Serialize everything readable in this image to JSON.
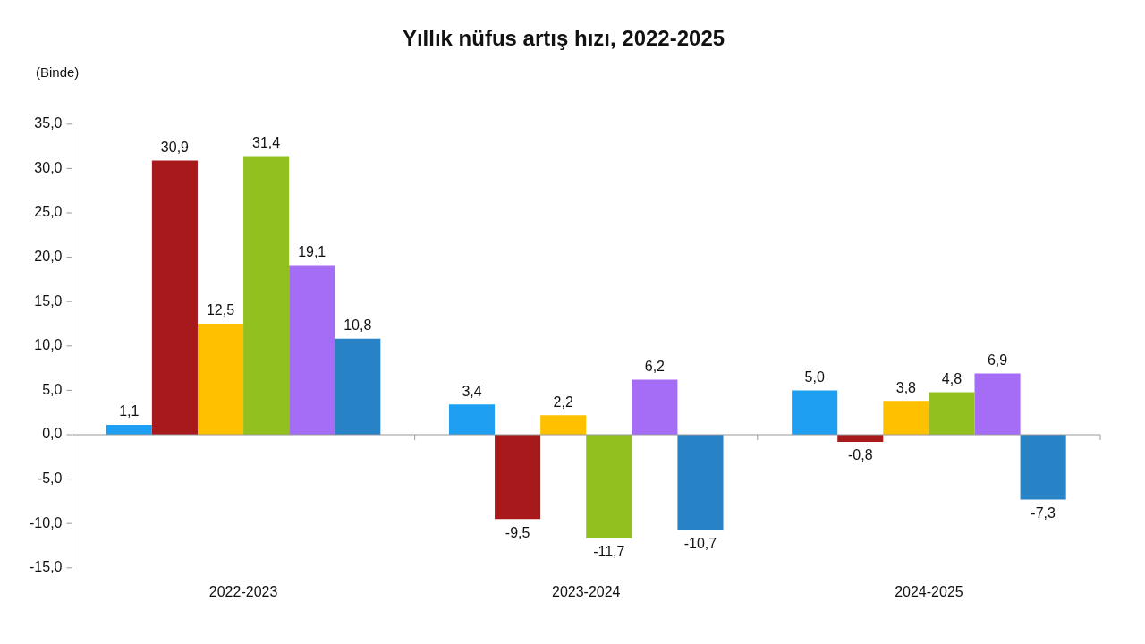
{
  "chart_data": {
    "type": "bar",
    "title": "Yıllık nüfus artış hızı, 2022-2025",
    "ylabel": "(Binde)",
    "categories": [
      "2022-2023",
      "2023-2024",
      "2024-2025"
    ],
    "series": [
      {
        "color": "#1e9ff2",
        "values": [
          1.1,
          3.4,
          5.0
        ],
        "value_labels": [
          "1,1",
          "3,4",
          "5,0"
        ]
      },
      {
        "color": "#a8191b",
        "values": [
          30.9,
          -9.5,
          -0.8
        ],
        "value_labels": [
          "30,9",
          "-9,5",
          "-0,8"
        ]
      },
      {
        "color": "#ffc000",
        "values": [
          12.5,
          2.2,
          3.8
        ],
        "value_labels": [
          "12,5",
          "2,2",
          "3,8"
        ]
      },
      {
        "color": "#92c01f",
        "values": [
          31.4,
          -11.7,
          4.8
        ],
        "value_labels": [
          "31,4",
          "-11,7",
          "4,8"
        ]
      },
      {
        "color": "#a56cf5",
        "values": [
          19.1,
          6.2,
          6.9
        ],
        "value_labels": [
          "19,1",
          "6,2",
          "6,9"
        ]
      },
      {
        "color": "#2882c6",
        "values": [
          10.8,
          -10.7,
          -7.3
        ],
        "value_labels": [
          "10,8",
          "-10,7",
          "-7,3"
        ]
      }
    ],
    "ylim": [
      -15,
      35
    ],
    "yticks": [
      {
        "value": -15,
        "label": "-15,0"
      },
      {
        "value": -10,
        "label": "-10,0"
      },
      {
        "value": -5,
        "label": "-5,0"
      },
      {
        "value": 0,
        "label": "0,0"
      },
      {
        "value": 5,
        "label": "5,0"
      },
      {
        "value": 10,
        "label": "10,0"
      },
      {
        "value": 15,
        "label": "15,0"
      },
      {
        "value": 20,
        "label": "20,0"
      },
      {
        "value": 25,
        "label": "25,0"
      },
      {
        "value": 30,
        "label": "30,0"
      },
      {
        "value": 35,
        "label": "35,0"
      }
    ],
    "ref_lines": [
      {
        "axis": "y",
        "value": 0,
        "color": "#999999"
      }
    ],
    "grid": false,
    "legend": false
  }
}
